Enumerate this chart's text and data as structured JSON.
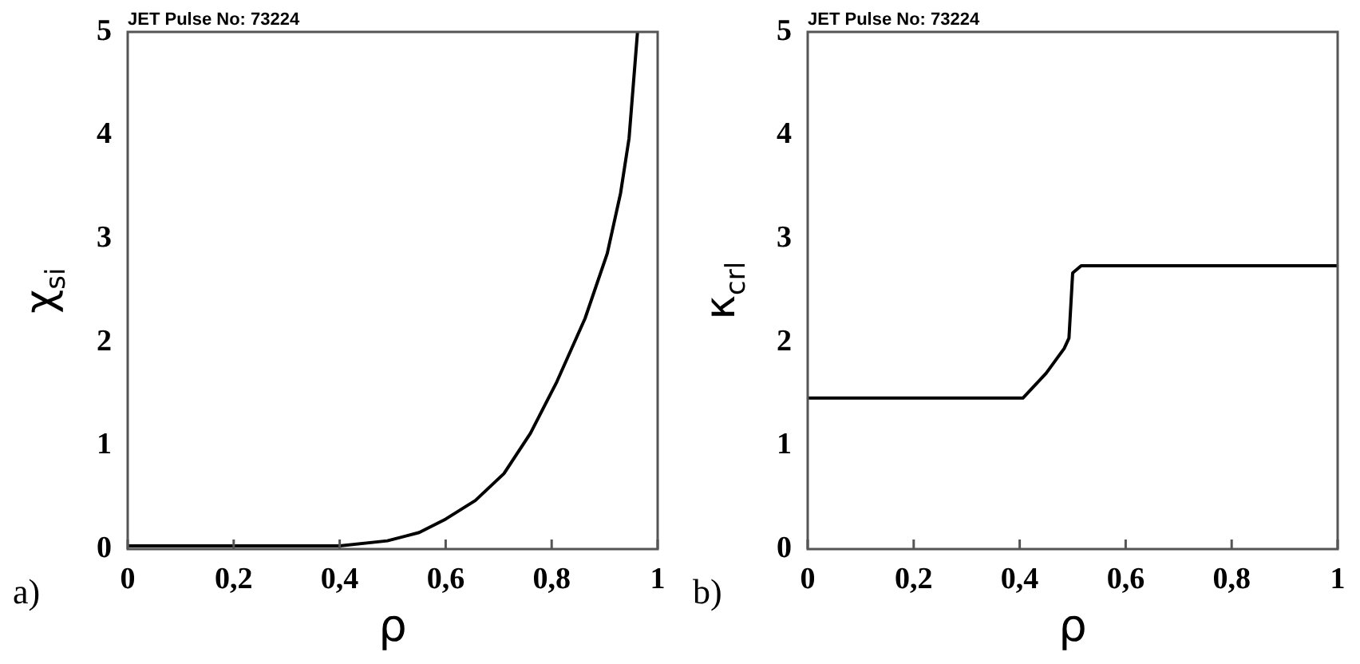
{
  "chart_data": [
    {
      "type": "line",
      "title": "JET Pulse No: 73224",
      "xlabel": "ρ",
      "ylabel": "χ$_{si}$",
      "annotations": [
        "a)"
      ],
      "x": [
        0,
        0.1,
        0.2,
        0.3,
        0.4,
        0.49,
        0.55,
        0.6,
        0.656,
        0.71,
        0.76,
        0.81,
        0.863,
        0.905,
        0.93,
        0.946,
        0.962
      ],
      "xticks": [
        {
          "value": 0,
          "label": "0"
        },
        {
          "value": 0.2,
          "label": "0,2"
        },
        {
          "value": 0.4,
          "label": "0,4"
        },
        {
          "value": 0.6,
          "label": "0,6"
        },
        {
          "value": 0.8,
          "label": "0,8"
        },
        {
          "value": 1,
          "label": "1"
        }
      ],
      "series": [
        {
          "color": "#000000",
          "values": [
            0.03,
            0.03,
            0.03,
            0.03,
            0.03,
            0.08,
            0.16,
            0.29,
            0.47,
            0.73,
            1.12,
            1.62,
            2.23,
            2.86,
            3.44,
            3.97,
            5
          ]
        }
      ],
      "xlim": [
        0,
        1
      ],
      "ylim": [
        0,
        5
      ],
      "yticks": [
        0,
        1,
        2,
        3,
        4,
        5
      ],
      "grid": false,
      "legend": false,
      "marker": "none",
      "line_style": "solid"
    },
    {
      "type": "line",
      "title": "JET Pulse No: 73224",
      "xlabel": "ρ",
      "ylabel": "κ$_{crl}$",
      "annotations": [
        "b)"
      ],
      "x": [
        0,
        0.2,
        0.406,
        0.45,
        0.484,
        0.493,
        0.5,
        0.516,
        0.7,
        1
      ],
      "xticks": [
        {
          "value": 0,
          "label": "0"
        },
        {
          "value": 0.2,
          "label": "0,2"
        },
        {
          "value": 0.4,
          "label": "0,4"
        },
        {
          "value": 0.6,
          "label": "0,6"
        },
        {
          "value": 0.8,
          "label": "0,8"
        },
        {
          "value": 1,
          "label": "1"
        }
      ],
      "series": [
        {
          "color": "#000000",
          "values": [
            1.46,
            1.46,
            1.46,
            1.7,
            1.94,
            2.04,
            2.67,
            2.74,
            2.74,
            2.74
          ]
        }
      ],
      "xlim": [
        0,
        1
      ],
      "ylim": [
        0,
        5
      ],
      "yticks": [
        0,
        1,
        2,
        3,
        4,
        5
      ],
      "grid": false,
      "legend": false,
      "marker": "none",
      "line_style": "solid"
    }
  ]
}
